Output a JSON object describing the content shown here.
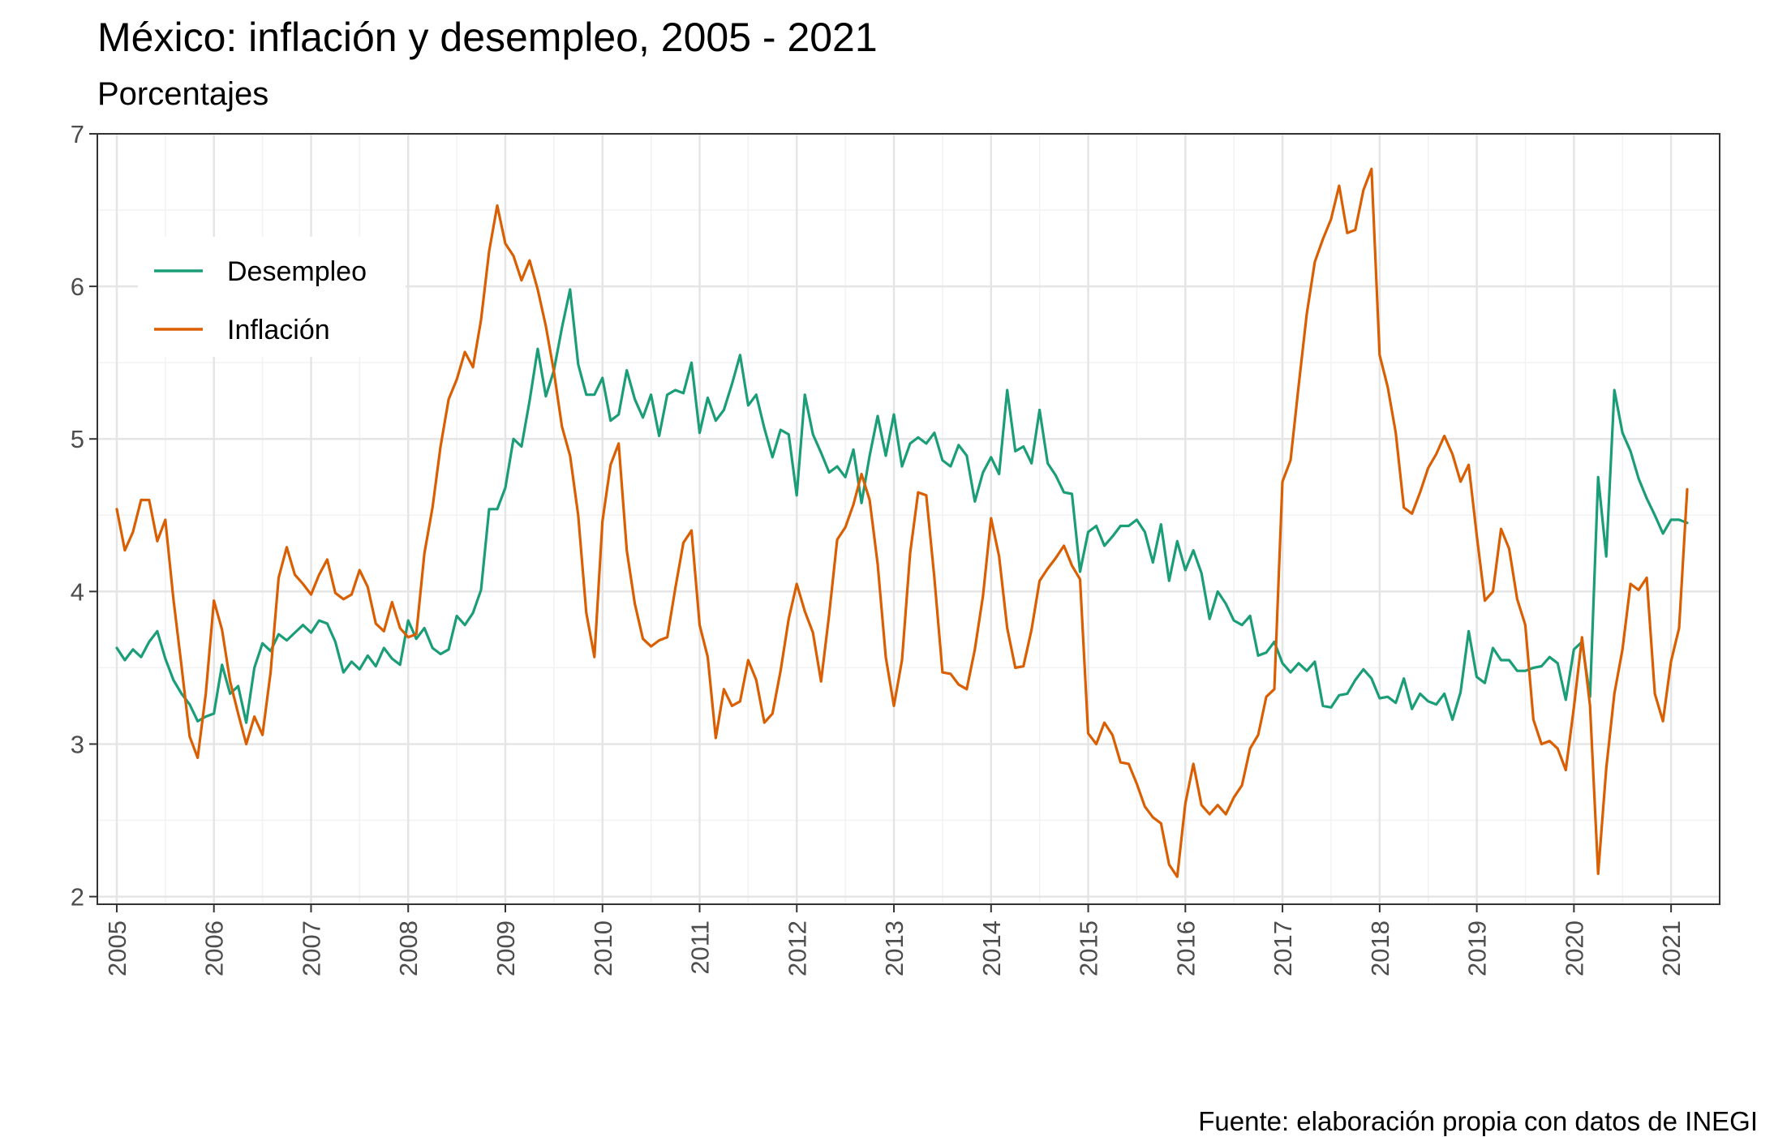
{
  "chart_data": {
    "type": "line",
    "title": "México: inflación y desempleo, 2005 - 2021",
    "subtitle": "Porcentajes",
    "caption": "Fuente: elaboración propia con datos de INEGI",
    "xlabel": "",
    "ylabel": "",
    "xlim": [
      2004.8,
      2021.5
    ],
    "ylim": [
      1.95,
      7.0
    ],
    "x_ticks": [
      "2005",
      "2006",
      "2007",
      "2008",
      "2009",
      "2010",
      "2011",
      "2012",
      "2013",
      "2014",
      "2015",
      "2016",
      "2017",
      "2018",
      "2019",
      "2020",
      "2021"
    ],
    "y_ticks": [
      "2",
      "3",
      "4",
      "5",
      "6",
      "7"
    ],
    "grid": true,
    "legend_position": "top-left",
    "x_start": 2005,
    "x_step": 0.08333,
    "series": [
      {
        "name": "Desempleo",
        "color": "#1b9e77",
        "values": [
          3.63,
          3.55,
          3.62,
          3.57,
          3.67,
          3.74,
          3.56,
          3.42,
          3.33,
          3.26,
          3.15,
          3.18,
          3.2,
          3.52,
          3.33,
          3.38,
          3.14,
          3.5,
          3.66,
          3.61,
          3.72,
          3.68,
          3.73,
          3.78,
          3.73,
          3.81,
          3.79,
          3.67,
          3.47,
          3.54,
          3.49,
          3.58,
          3.51,
          3.63,
          3.56,
          3.52,
          3.81,
          3.69,
          3.76,
          3.63,
          3.59,
          3.62,
          3.84,
          3.78,
          3.86,
          4.01,
          4.54,
          4.54,
          4.68,
          5.0,
          4.95,
          5.25,
          5.59,
          5.28,
          5.45,
          5.73,
          5.98,
          5.49,
          5.29,
          5.29,
          5.4,
          5.12,
          5.16,
          5.45,
          5.26,
          5.14,
          5.29,
          5.02,
          5.29,
          5.32,
          5.3,
          5.5,
          5.04,
          5.27,
          5.12,
          5.19,
          5.36,
          5.55,
          5.22,
          5.29,
          5.07,
          4.88,
          5.06,
          5.03,
          4.63,
          5.29,
          5.03,
          4.91,
          4.78,
          4.82,
          4.75,
          4.93,
          4.58,
          4.89,
          5.15,
          4.89,
          5.16,
          4.82,
          4.97,
          5.01,
          4.97,
          5.04,
          4.86,
          4.82,
          4.96,
          4.89,
          4.59,
          4.78,
          4.88,
          4.77,
          5.32,
          4.92,
          4.95,
          4.84,
          5.19,
          4.84,
          4.76,
          4.65,
          4.64,
          4.13,
          4.39,
          4.43,
          4.3,
          4.36,
          4.43,
          4.43,
          4.47,
          4.39,
          4.19,
          4.44,
          4.07,
          4.33,
          4.14,
          4.27,
          4.12,
          3.82,
          4.0,
          3.92,
          3.81,
          3.78,
          3.84,
          3.58,
          3.6,
          3.67,
          3.53,
          3.47,
          3.53,
          3.48,
          3.54,
          3.25,
          3.24,
          3.32,
          3.33,
          3.42,
          3.49,
          3.43,
          3.3,
          3.31,
          3.27,
          3.43,
          3.23,
          3.33,
          3.28,
          3.26,
          3.33,
          3.16,
          3.34,
          3.74,
          3.44,
          3.4,
          3.63,
          3.55,
          3.55,
          3.48,
          3.48,
          3.5,
          3.51,
          3.57,
          3.53,
          3.29,
          3.62,
          3.67,
          3.31,
          4.75,
          4.23,
          5.32,
          5.04,
          4.92,
          4.74,
          4.61,
          4.5,
          4.38,
          4.47,
          4.47,
          4.45
        ]
      },
      {
        "name": "Inflación",
        "color": "#d95f02",
        "values": [
          4.54,
          4.27,
          4.39,
          4.6,
          4.6,
          4.33,
          4.47,
          3.95,
          3.51,
          3.05,
          2.91,
          3.33,
          3.94,
          3.75,
          3.41,
          3.2,
          3.0,
          3.18,
          3.06,
          3.47,
          4.09,
          4.29,
          4.11,
          4.05,
          3.98,
          4.11,
          4.21,
          3.99,
          3.95,
          3.98,
          4.14,
          4.03,
          3.79,
          3.74,
          3.93,
          3.76,
          3.7,
          3.72,
          4.25,
          4.55,
          4.95,
          5.26,
          5.39,
          5.57,
          5.47,
          5.78,
          6.23,
          6.53,
          6.28,
          6.2,
          6.04,
          6.17,
          5.98,
          5.74,
          5.44,
          5.08,
          4.89,
          4.5,
          3.86,
          3.57,
          4.46,
          4.83,
          4.97,
          4.27,
          3.92,
          3.69,
          3.64,
          3.68,
          3.7,
          4.02,
          4.32,
          4.4,
          3.78,
          3.57,
          3.04,
          3.36,
          3.25,
          3.28,
          3.55,
          3.42,
          3.14,
          3.2,
          3.48,
          3.82,
          4.05,
          3.87,
          3.73,
          3.41,
          3.85,
          4.34,
          4.42,
          4.57,
          4.77,
          4.6,
          4.18,
          3.57,
          3.25,
          3.55,
          4.25,
          4.65,
          4.63,
          4.09,
          3.47,
          3.46,
          3.39,
          3.36,
          3.62,
          3.97,
          4.48,
          4.23,
          3.76,
          3.5,
          3.51,
          3.75,
          4.07,
          4.15,
          4.22,
          4.3,
          4.17,
          4.08,
          3.07,
          3.0,
          3.14,
          3.06,
          2.88,
          2.87,
          2.74,
          2.59,
          2.52,
          2.48,
          2.21,
          2.13,
          2.61,
          2.87,
          2.6,
          2.54,
          2.6,
          2.54,
          2.65,
          2.73,
          2.97,
          3.06,
          3.31,
          3.36,
          4.72,
          4.86,
          5.35,
          5.82,
          6.16,
          6.31,
          6.44,
          6.66,
          6.35,
          6.37,
          6.63,
          6.77,
          5.55,
          5.34,
          5.04,
          4.55,
          4.51,
          4.65,
          4.81,
          4.9,
          5.02,
          4.9,
          4.72,
          4.83,
          4.37,
          3.94,
          4.0,
          4.41,
          4.28,
          3.95,
          3.78,
          3.16,
          3.0,
          3.02,
          2.97,
          2.83,
          3.24,
          3.7,
          3.25,
          2.15,
          2.84,
          3.33,
          3.62,
          4.05,
          4.01,
          4.09,
          3.33,
          3.15,
          3.54,
          3.76,
          4.67
        ]
      }
    ]
  }
}
